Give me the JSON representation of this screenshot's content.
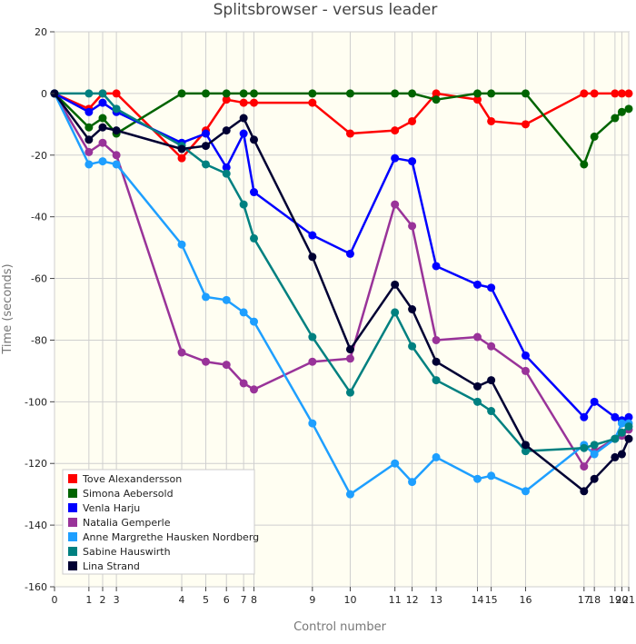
{
  "chart_data": {
    "type": "line",
    "title": "Splitsbrowser - versus leader",
    "xlabel": "Control number",
    "ylabel": "Time (seconds)",
    "ylim": [
      -160,
      20
    ],
    "yticks": [
      20,
      0,
      -20,
      -40,
      -60,
      -80,
      -100,
      -120,
      -140,
      -160
    ],
    "x_cumulative": [
      0,
      10,
      14,
      18,
      37,
      44,
      50,
      55,
      58,
      75,
      86,
      99,
      104,
      111,
      123,
      127,
      137,
      154,
      157,
      163,
      165,
      167
    ],
    "xtick_labels": [
      "0",
      "1",
      "2",
      "3",
      "4",
      "5",
      "6",
      "7",
      "8",
      "9",
      "10",
      "11",
      "12",
      "13",
      "14",
      "15",
      "16",
      "17",
      "18",
      "19",
      "20",
      "21"
    ],
    "grid": true,
    "legend_position": "bottom-left",
    "series": [
      {
        "name": "Tove Alexandersson",
        "color": "#ff0000",
        "values": [
          0,
          -5,
          0,
          0,
          -21,
          -12,
          -2,
          -3,
          -3,
          -3,
          -13,
          -12,
          -9,
          0,
          -2,
          -9,
          -10,
          0,
          0,
          0,
          0,
          0
        ]
      },
      {
        "name": "Simona Aebersold",
        "color": "#006400",
        "values": [
          0,
          -11,
          -8,
          -13,
          0,
          0,
          0,
          0,
          0,
          0,
          0,
          0,
          0,
          -2,
          0,
          0,
          0,
          -23,
          -14,
          -8,
          -6,
          -5
        ]
      },
      {
        "name": "Venla Harju",
        "color": "#0000ff",
        "values": [
          0,
          -6,
          -3,
          -6,
          -16,
          -13,
          -24,
          -13,
          -32,
          -46,
          -52,
          -21,
          -22,
          -56,
          -62,
          -63,
          -85,
          -105,
          -100,
          -105,
          -106,
          -105
        ]
      },
      {
        "name": "Natalia Gemperle",
        "color": "#993399",
        "values": [
          0,
          -19,
          -16,
          -20,
          -84,
          -87,
          -88,
          -94,
          -96,
          -87,
          -86,
          -36,
          -43,
          -80,
          -79,
          -82,
          -90,
          -121,
          -116,
          -112,
          -111,
          -109
        ]
      },
      {
        "name": "Anne Margrethe Hausken Nordberg",
        "color": "#1e9fff",
        "values": [
          0,
          -23,
          -22,
          -23,
          -49,
          -66,
          -67,
          -71,
          -74,
          -107,
          -130,
          -120,
          -126,
          -118,
          -125,
          -124,
          -129,
          -114,
          -117,
          -112,
          -107,
          -107
        ]
      },
      {
        "name": "Sabine Hauswirth",
        "color": "#008080",
        "values": [
          0,
          0,
          0,
          -5,
          -17,
          -23,
          -26,
          -36,
          -47,
          -79,
          -97,
          -71,
          -82,
          -93,
          -100,
          -103,
          -116,
          -115,
          -114,
          -112,
          -110,
          -108
        ]
      },
      {
        "name": "Lina Strand",
        "color": "#000033",
        "values": [
          0,
          -15,
          -11,
          -12,
          -18,
          -17,
          -12,
          -8,
          -15,
          -53,
          -83,
          -62,
          -70,
          -87,
          -95,
          -93,
          -114,
          -129,
          -125,
          -118,
          -117,
          -112
        ]
      }
    ]
  }
}
